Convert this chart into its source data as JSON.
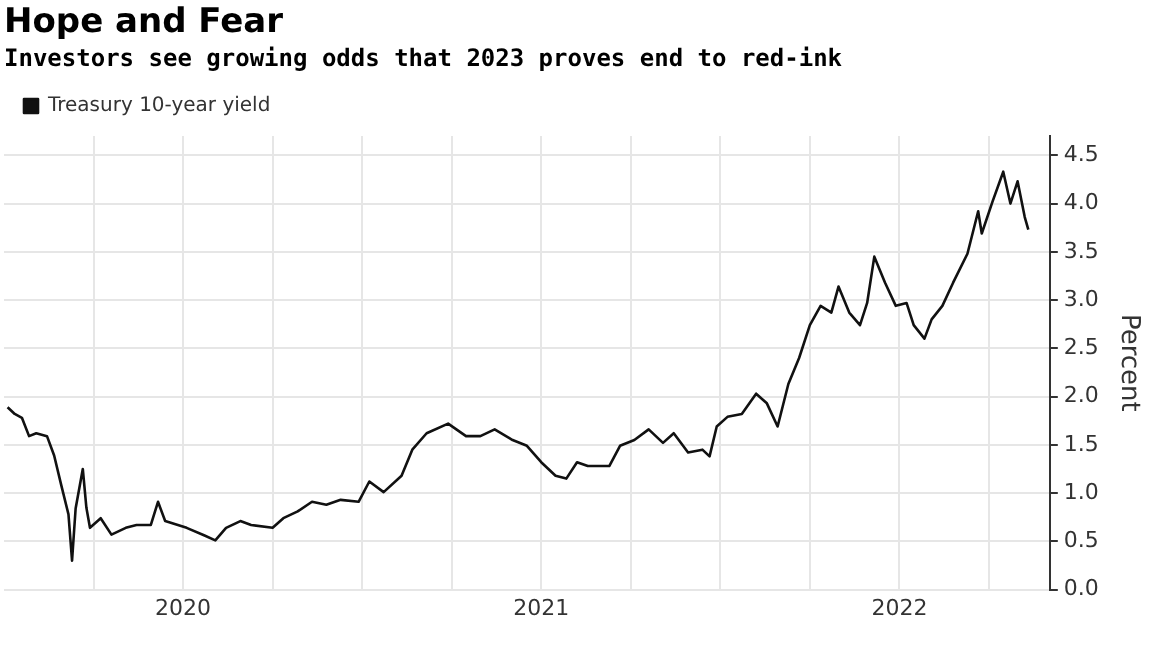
{
  "chart_data": {
    "type": "line",
    "title": "Hope and Fear",
    "subtitle": "Investors see growing odds that 2023 proves end to red-ink",
    "ylabel": "Percent",
    "series": [
      {
        "name": "Treasury 10-year yield",
        "color": "#111111",
        "x": [
          2020.01,
          2020.03,
          2020.05,
          2020.07,
          2020.09,
          2020.12,
          2020.14,
          2020.16,
          2020.18,
          2020.19,
          2020.2,
          2020.22,
          2020.23,
          2020.24,
          2020.27,
          2020.3,
          2020.34,
          2020.37,
          2020.41,
          2020.43,
          2020.45,
          2020.51,
          2020.56,
          2020.59,
          2020.62,
          2020.66,
          2020.69,
          2020.75,
          2020.78,
          2020.82,
          2020.86,
          2020.9,
          2020.94,
          2020.99,
          2021.02,
          2021.06,
          2021.11,
          2021.14,
          2021.18,
          2021.24,
          2021.29,
          2021.33,
          2021.37,
          2021.42,
          2021.46,
          2021.5,
          2021.54,
          2021.57,
          2021.6,
          2021.63,
          2021.69,
          2021.72,
          2021.76,
          2021.8,
          2021.84,
          2021.87,
          2021.91,
          2021.95,
          2021.97,
          2021.99,
          2022.02,
          2022.06,
          2022.1,
          2022.13,
          2022.16,
          2022.19,
          2022.22,
          2022.25,
          2022.28,
          2022.31,
          2022.33,
          2022.36,
          2022.39,
          2022.41,
          2022.43,
          2022.46,
          2022.49,
          2022.52,
          2022.54,
          2022.57,
          2022.59,
          2022.62,
          2022.65,
          2022.69,
          2022.72,
          2022.73,
          2022.76,
          2022.79,
          2022.81,
          2022.83,
          2022.85,
          2022.86
        ],
        "values": [
          1.89,
          1.82,
          1.78,
          1.59,
          1.62,
          1.59,
          1.39,
          1.08,
          0.78,
          0.3,
          0.84,
          1.25,
          0.85,
          0.64,
          0.74,
          0.57,
          0.64,
          0.67,
          0.67,
          0.91,
          0.71,
          0.64,
          0.56,
          0.51,
          0.64,
          0.71,
          0.67,
          0.64,
          0.74,
          0.81,
          0.91,
          0.88,
          0.93,
          0.91,
          1.12,
          1.01,
          1.18,
          1.45,
          1.62,
          1.72,
          1.59,
          1.59,
          1.66,
          1.55,
          1.49,
          1.32,
          1.18,
          1.15,
          1.32,
          1.28,
          1.28,
          1.49,
          1.55,
          1.66,
          1.52,
          1.62,
          1.42,
          1.45,
          1.38,
          1.69,
          1.79,
          1.82,
          2.03,
          1.93,
          1.69,
          2.13,
          2.4,
          2.74,
          2.94,
          2.87,
          3.14,
          2.87,
          2.74,
          2.97,
          3.45,
          3.18,
          2.94,
          2.97,
          2.74,
          2.6,
          2.8,
          2.94,
          3.18,
          3.48,
          3.92,
          3.69,
          4.02,
          4.33,
          4.0,
          4.23,
          3.86,
          3.73
        ]
      }
    ],
    "xlim": [
      2020.0,
      2022.92
    ],
    "xticks": [
      {
        "value": 2020.25,
        "label": null
      },
      {
        "value": 2020.5,
        "label": "2020"
      },
      {
        "value": 2020.75,
        "label": null
      },
      {
        "value": 2021.0,
        "label": null
      },
      {
        "value": 2021.25,
        "label": null
      },
      {
        "value": 2021.5,
        "label": "2021"
      },
      {
        "value": 2021.75,
        "label": null
      },
      {
        "value": 2022.0,
        "label": null
      },
      {
        "value": 2022.25,
        "label": null
      },
      {
        "value": 2022.5,
        "label": "2022"
      },
      {
        "value": 2022.75,
        "label": null
      }
    ],
    "ylim": [
      0,
      4.7
    ],
    "yticks": [
      {
        "value": 0,
        "label": "0.0"
      },
      0.5,
      {
        "value": 1,
        "label": "1.0"
      },
      1.5,
      {
        "value": 2,
        "label": "2.0"
      },
      2.5,
      {
        "value": 3,
        "label": "3.0"
      },
      3.5,
      {
        "value": 4,
        "label": "4.0"
      },
      4.5
    ],
    "grid": true,
    "legend": "top left",
    "marker": "none",
    "line_style": "solid"
  }
}
